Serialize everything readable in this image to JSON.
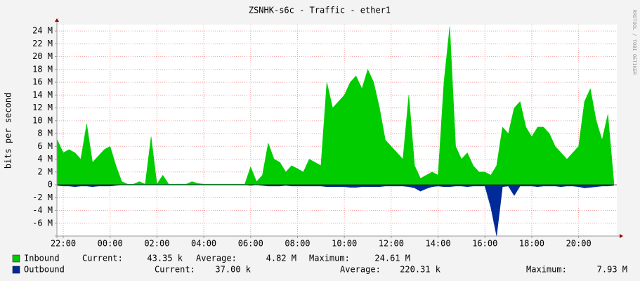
{
  "chart_data": {
    "type": "area",
    "title": "ZSNHK-s6c - Traffic - ether1",
    "y_label": "bits per second",
    "watermark": "RRDTOOL / TOBI OETIKER",
    "grid": true,
    "xlim": [
      -0.27,
      23.63
    ],
    "xticks": [
      {
        "value": 0,
        "label": "22:00"
      },
      {
        "value": 2,
        "label": "00:00"
      },
      {
        "value": 4,
        "label": "02:00"
      },
      {
        "value": 6,
        "label": "04:00"
      },
      {
        "value": 8,
        "label": "06:00"
      },
      {
        "value": 10,
        "label": "08:00"
      },
      {
        "value": 12,
        "label": "10:00"
      },
      {
        "value": 14,
        "label": "12:00"
      },
      {
        "value": 16,
        "label": "14:00"
      },
      {
        "value": 18,
        "label": "16:00"
      },
      {
        "value": 20,
        "label": "18:00"
      },
      {
        "value": 22,
        "label": "20:00"
      }
    ],
    "ylim": [
      -8,
      25
    ],
    "yticks": [
      {
        "value": -6,
        "label": "-6 M"
      },
      {
        "value": -4,
        "label": "-4 M"
      },
      {
        "value": -2,
        "label": "-2 M"
      },
      0,
      {
        "value": 2,
        "label": "2 M"
      },
      {
        "value": 4,
        "label": "4 M"
      },
      {
        "value": 6,
        "label": "6 M"
      },
      {
        "value": 8,
        "label": "8 M"
      },
      {
        "value": 10,
        "label": "10 M"
      },
      {
        "value": 12,
        "label": "12 M"
      },
      {
        "value": 14,
        "label": "14 M"
      },
      {
        "value": 16,
        "label": "16 M"
      },
      {
        "value": 18,
        "label": "18 M"
      },
      {
        "value": 20,
        "label": "20 M"
      },
      {
        "value": 22,
        "label": "22 M"
      },
      {
        "value": 24,
        "label": "24 M"
      }
    ],
    "x": [
      -0.25,
      0,
      0.25,
      0.5,
      0.75,
      1,
      1.25,
      1.5,
      1.75,
      2,
      2.25,
      2.5,
      2.75,
      3,
      3.25,
      3.5,
      3.75,
      4,
      4.25,
      4.5,
      4.75,
      5,
      5.25,
      5.5,
      5.75,
      6,
      6.25,
      6.5,
      6.75,
      7,
      7.25,
      7.5,
      7.75,
      8,
      8.25,
      8.5,
      8.75,
      9,
      9.25,
      9.5,
      9.75,
      10,
      10.25,
      10.5,
      10.75,
      11,
      11.25,
      11.5,
      11.75,
      12,
      12.25,
      12.5,
      12.75,
      13,
      13.25,
      13.5,
      13.75,
      14,
      14.25,
      14.5,
      14.75,
      15,
      15.25,
      15.5,
      15.75,
      16,
      16.25,
      16.5,
      16.75,
      17,
      17.25,
      17.5,
      17.75,
      18,
      18.25,
      18.5,
      18.75,
      19,
      19.25,
      19.5,
      19.75,
      20,
      20.25,
      20.5,
      20.75,
      21,
      21.25,
      21.5,
      21.75,
      22,
      22.25,
      22.5,
      22.75,
      23,
      23.25,
      23.5
    ],
    "stat_labels": [
      "Current:",
      "Average:",
      "Maximum:"
    ],
    "series": [
      {
        "name": "Inbound",
        "color": "#00cc00",
        "current": "43.35 k",
        "average": "4.82 M",
        "maximum": "24.61 M",
        "values": [
          7,
          5,
          5.5,
          5,
          4,
          9.5,
          3.5,
          4.5,
          5.5,
          6,
          3,
          0.5,
          0.1,
          0.1,
          0.5,
          0.1,
          7.5,
          0.1,
          1.5,
          0.1,
          0.1,
          0.1,
          0.1,
          0.5,
          0.2,
          0.1,
          0.1,
          0.1,
          0.1,
          0.1,
          0.1,
          0.1,
          0.1,
          2.8,
          0.5,
          1.5,
          6.5,
          4,
          3.5,
          2,
          3,
          2.5,
          2,
          4,
          3.5,
          3,
          16,
          12,
          13,
          14,
          16,
          17,
          15,
          18,
          16,
          12,
          7,
          6,
          5,
          4,
          14,
          3,
          1,
          1.5,
          2,
          1.5,
          16,
          24.7,
          6,
          4,
          5,
          3,
          2,
          2,
          1.5,
          3,
          9,
          8,
          12,
          13,
          9,
          7.5,
          9,
          9,
          8,
          6,
          5,
          4,
          5,
          6,
          13,
          15,
          10,
          7,
          11,
          0.5
        ]
      },
      {
        "name": "Outbound",
        "color": "#002a97",
        "current": "37.00 k",
        "average": "220.31 k",
        "maximum": "7.93 M",
        "values": [
          -0.1,
          -0.2,
          -0.2,
          -0.3,
          -0.2,
          -0.2,
          -0.3,
          -0.2,
          -0.2,
          -0.2,
          -0.1,
          0,
          0,
          0,
          0,
          0,
          0,
          0,
          0,
          0,
          0,
          0,
          0,
          0,
          0,
          0,
          0,
          0,
          0,
          0,
          0,
          0,
          0,
          -0.1,
          0,
          -0.1,
          -0.2,
          -0.2,
          -0.2,
          -0.1,
          -0.2,
          -0.2,
          -0.2,
          -0.2,
          -0.2,
          -0.2,
          -0.3,
          -0.3,
          -0.3,
          -0.3,
          -0.4,
          -0.4,
          -0.3,
          -0.3,
          -0.3,
          -0.3,
          -0.2,
          -0.2,
          -0.2,
          -0.2,
          -0.3,
          -0.5,
          -1,
          -0.6,
          -0.3,
          -0.2,
          -0.3,
          -0.3,
          -0.2,
          -0.2,
          -0.3,
          -0.2,
          -0.2,
          -0.2,
          -3.5,
          -8,
          -0.3,
          -0.2,
          -1.7,
          -0.2,
          -0.2,
          -0.2,
          -0.3,
          -0.2,
          -0.2,
          -0.2,
          -0.3,
          -0.2,
          -0.2,
          -0.3,
          -0.5,
          -0.4,
          -0.3,
          -0.2,
          -0.2,
          -0.1
        ]
      }
    ]
  }
}
